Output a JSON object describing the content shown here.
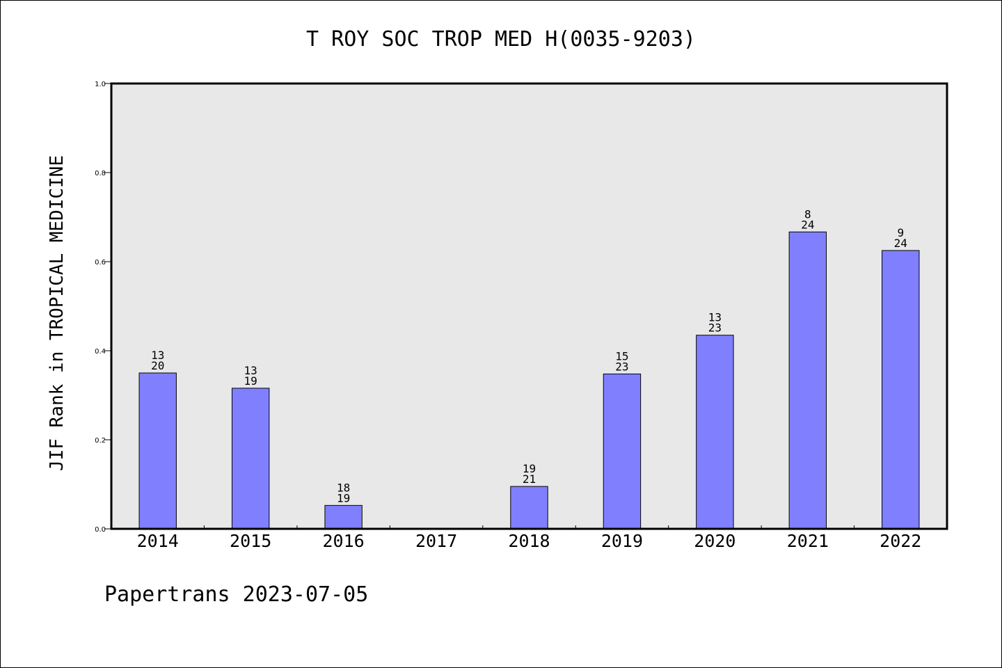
{
  "chart_data": {
    "type": "bar",
    "title": "T ROY SOC TROP MED H(0035-9203)",
    "xlabel": "",
    "ylabel": "JIF Rank in TROPICAL MEDICINE",
    "ylim": [
      0,
      1.0
    ],
    "yticks": [
      "0.0",
      "0.2",
      "0.4",
      "0.6",
      "0.8",
      "1.0"
    ],
    "categories": [
      "2014",
      "2015",
      "2016",
      "2017",
      "2018",
      "2019",
      "2020",
      "2021",
      "2022"
    ],
    "values": [
      0.35,
      0.3158,
      0.0526,
      null,
      0.0952,
      0.3478,
      0.4348,
      0.6667,
      0.625
    ],
    "rank_labels": [
      {
        "rank": "13",
        "total": "20"
      },
      {
        "rank": "13",
        "total": "19"
      },
      {
        "rank": "18",
        "total": "19"
      },
      null,
      {
        "rank": "19",
        "total": "21"
      },
      {
        "rank": "15",
        "total": "23"
      },
      {
        "rank": "13",
        "total": "23"
      },
      {
        "rank": "8",
        "total": "24"
      },
      {
        "rank": "9",
        "total": "24"
      }
    ],
    "bar_color": "#8080ff",
    "plot_background": "#e8e8e8",
    "grid": false,
    "legend": "none"
  },
  "footer": {
    "text": "Papertrans 2023-07-05"
  }
}
